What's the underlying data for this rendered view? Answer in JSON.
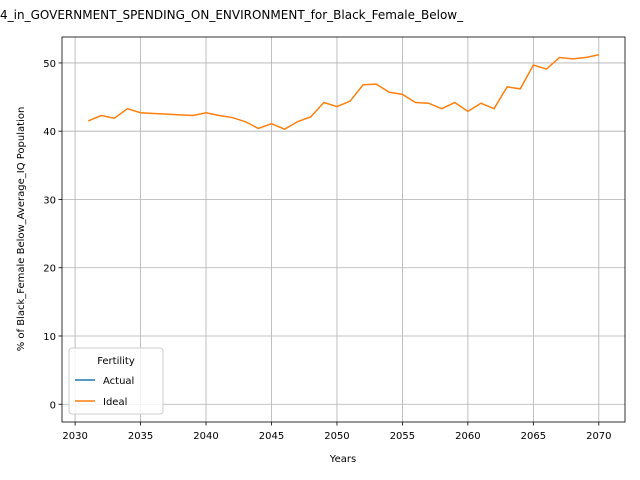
{
  "chart_data": {
    "type": "line",
    "title": "4_in_GOVERNMENT_SPENDING_ON_ENVIRONMENT_for_Black_Female_Below_",
    "x_label": "Years",
    "y_label": "% of Black_Female Below_Average_IQ Population",
    "x": [
      2031,
      2032,
      2033,
      2034,
      2035,
      2036,
      2037,
      2038,
      2039,
      2040,
      2041,
      2042,
      2043,
      2044,
      2045,
      2046,
      2047,
      2048,
      2049,
      2050,
      2051,
      2052,
      2053,
      2054,
      2055,
      2056,
      2057,
      2058,
      2059,
      2060,
      2061,
      2062,
      2063,
      2064,
      2065,
      2066,
      2067,
      2068,
      2069,
      2070
    ],
    "series": [
      {
        "name": "Actual",
        "color": "#1f77b4",
        "values": [
          null,
          null,
          null,
          null,
          null,
          null,
          null,
          null,
          null,
          null,
          null,
          null,
          null,
          null,
          null,
          null,
          null,
          null,
          null,
          null,
          null,
          null,
          null,
          null,
          null,
          null,
          null,
          null,
          null,
          null,
          null,
          null,
          null,
          null,
          null,
          null,
          null,
          null,
          null,
          null
        ]
      },
      {
        "name": "Ideal",
        "color": "#ff7f0e",
        "values": [
          41.5,
          42.3,
          41.9,
          43.3,
          42.7,
          42.6,
          42.5,
          42.4,
          42.3,
          42.7,
          42.3,
          42.0,
          41.4,
          40.4,
          41.1,
          40.3,
          41.4,
          42.1,
          44.2,
          43.6,
          44.4,
          46.8,
          46.9,
          45.7,
          45.4,
          44.2,
          44.1,
          43.3,
          44.2,
          42.9,
          44.1,
          43.3,
          46.5,
          46.2,
          49.7,
          49.1,
          50.8,
          50.6,
          50.8,
          51.2
        ]
      }
    ],
    "legend_title": "Fertility",
    "legend": "lower left",
    "grid": true,
    "xlim": [
      2029,
      2072
    ],
    "xticks": [
      2030,
      2035,
      2040,
      2045,
      2050,
      2055,
      2060,
      2065,
      2070
    ],
    "ylim": [
      -2.6,
      53.8
    ],
    "yticks": [
      0,
      10,
      20,
      30,
      40,
      50
    ]
  }
}
